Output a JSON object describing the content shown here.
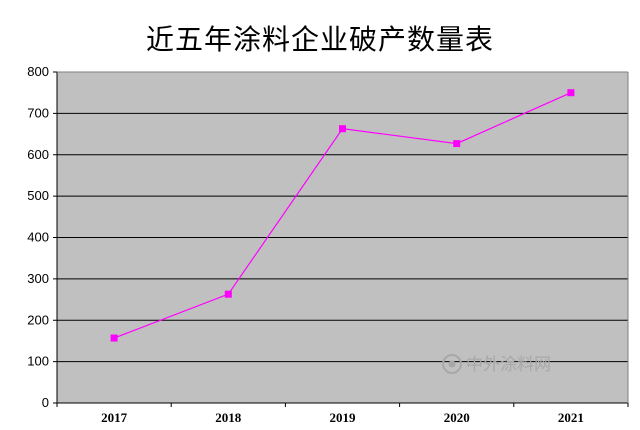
{
  "chart_data": {
    "type": "line",
    "title": "近五年涂料企业破产数量表",
    "xlabel": "",
    "ylabel": "",
    "categories": [
      "2017",
      "2018",
      "2019",
      "2020",
      "2021"
    ],
    "series": [
      {
        "values": [
          157,
          263,
          663,
          627,
          750
        ]
      }
    ],
    "ylim": [
      0,
      800
    ],
    "yticks": [
      0,
      100,
      200,
      300,
      400,
      500,
      600,
      700,
      800
    ],
    "grid": true,
    "legend": "none",
    "colors": {
      "plot_background": "#c0c0c0",
      "gridline": "#000000",
      "series_line": "#ff00ff",
      "marker": "#ff00ff"
    }
  },
  "watermark": {
    "text": "中外涂料网"
  }
}
